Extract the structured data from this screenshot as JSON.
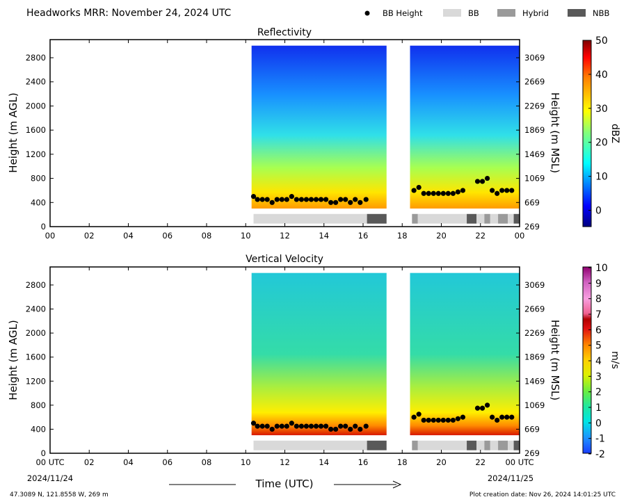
{
  "header": {
    "title": "Headworks MRR:  November 24, 2024 UTC",
    "legend": [
      {
        "label": "BB Height",
        "kind": "dot",
        "color": "#000000"
      },
      {
        "label": "BB",
        "kind": "box",
        "color": "#d9d9d9"
      },
      {
        "label": "Hybrid",
        "kind": "box",
        "color": "#9a9a9a"
      },
      {
        "label": "NBB",
        "kind": "box",
        "color": "#595959"
      }
    ]
  },
  "footer": {
    "location": "47.3089 N, 121.8558 W, 269 m",
    "created": "Plot creation date: Nov 26, 2024 14:01:25 UTC",
    "xlabel": "Time (UTC)",
    "start_date": "2024/11/24",
    "end_date": "2024/11/25"
  },
  "chart_data": [
    {
      "type": "heatmap",
      "title": "Reflectivity",
      "ylabel": "Height (m AGL)",
      "y2label": "Height (m MSL)",
      "colorbar_label": "dBZ",
      "colorbar_ticks": [
        "50",
        "40",
        "30",
        "20",
        "10",
        "0"
      ],
      "colorbar_range": [
        -5,
        50
      ],
      "x_ticks": [
        "00",
        "02",
        "04",
        "06",
        "08",
        "10",
        "12",
        "14",
        "16",
        "18",
        "20",
        "22",
        "00"
      ],
      "y_ticks": [
        "0",
        "400",
        "800",
        "1200",
        "1600",
        "2000",
        "2400",
        "2800"
      ],
      "y2_ticks": [
        "269",
        "669",
        "1069",
        "1469",
        "1869",
        "2269",
        "2669",
        "3069"
      ],
      "xlim": [
        0,
        24
      ],
      "ylim": [
        0,
        3100
      ],
      "data_segments": [
        {
          "start": 10.3,
          "end": 17.2,
          "low": 300,
          "high": 3000
        },
        {
          "start": 18.4,
          "end": 24.0,
          "low": 300,
          "high": 3000
        }
      ],
      "bb_height": [
        {
          "x": 10.4,
          "y": 500
        },
        {
          "x": 10.6,
          "y": 450
        },
        {
          "x": 10.85,
          "y": 450
        },
        {
          "x": 11.1,
          "y": 450
        },
        {
          "x": 11.35,
          "y": 400
        },
        {
          "x": 11.6,
          "y": 450
        },
        {
          "x": 11.85,
          "y": 450
        },
        {
          "x": 12.1,
          "y": 450
        },
        {
          "x": 12.35,
          "y": 500
        },
        {
          "x": 12.6,
          "y": 450
        },
        {
          "x": 12.85,
          "y": 450
        },
        {
          "x": 13.1,
          "y": 450
        },
        {
          "x": 13.35,
          "y": 450
        },
        {
          "x": 13.6,
          "y": 450
        },
        {
          "x": 13.85,
          "y": 450
        },
        {
          "x": 14.1,
          "y": 450
        },
        {
          "x": 14.35,
          "y": 400
        },
        {
          "x": 14.6,
          "y": 400
        },
        {
          "x": 14.85,
          "y": 450
        },
        {
          "x": 15.1,
          "y": 450
        },
        {
          "x": 15.35,
          "y": 400
        },
        {
          "x": 15.6,
          "y": 450
        },
        {
          "x": 15.85,
          "y": 400
        },
        {
          "x": 16.15,
          "y": 450
        },
        {
          "x": 18.6,
          "y": 600
        },
        {
          "x": 18.85,
          "y": 650
        },
        {
          "x": 19.1,
          "y": 550
        },
        {
          "x": 19.35,
          "y": 550
        },
        {
          "x": 19.6,
          "y": 550
        },
        {
          "x": 19.85,
          "y": 550
        },
        {
          "x": 20.1,
          "y": 550
        },
        {
          "x": 20.35,
          "y": 550
        },
        {
          "x": 20.6,
          "y": 550
        },
        {
          "x": 20.85,
          "y": 575
        },
        {
          "x": 21.1,
          "y": 600
        },
        {
          "x": 21.85,
          "y": 750
        },
        {
          "x": 22.1,
          "y": 750
        },
        {
          "x": 22.35,
          "y": 800
        },
        {
          "x": 22.6,
          "y": 600
        },
        {
          "x": 22.85,
          "y": 550
        },
        {
          "x": 23.1,
          "y": 600
        },
        {
          "x": 23.35,
          "y": 600
        },
        {
          "x": 23.6,
          "y": 600
        }
      ],
      "bb_types": [
        {
          "start": 10.4,
          "end": 16.2,
          "type": "BB"
        },
        {
          "start": 16.2,
          "end": 17.2,
          "type": "NBB"
        },
        {
          "start": 18.5,
          "end": 18.8,
          "type": "Hybrid"
        },
        {
          "start": 18.8,
          "end": 21.3,
          "type": "BB"
        },
        {
          "start": 21.3,
          "end": 21.8,
          "type": "NBB"
        },
        {
          "start": 21.8,
          "end": 22.2,
          "type": "BB"
        },
        {
          "start": 22.2,
          "end": 22.5,
          "type": "Hybrid"
        },
        {
          "start": 22.5,
          "end": 22.9,
          "type": "BB"
        },
        {
          "start": 22.9,
          "end": 23.4,
          "type": "Hybrid"
        },
        {
          "start": 23.4,
          "end": 23.7,
          "type": "BB"
        },
        {
          "start": 23.7,
          "end": 24.0,
          "type": "NBB"
        }
      ]
    },
    {
      "type": "heatmap",
      "title": "Vertical Velocity",
      "ylabel": "Height (m AGL)",
      "y2label": "Height (m MSL)",
      "colorbar_label": "m/s",
      "colorbar_ticks": [
        "10",
        "9",
        "8",
        "7",
        "6",
        "5",
        "4",
        "3",
        "2",
        "1",
        "0",
        "-1",
        "-2"
      ],
      "colorbar_range": [
        -2,
        10
      ],
      "x_ticks": [
        "00 UTC",
        "02",
        "04",
        "06",
        "08",
        "10",
        "12",
        "14",
        "16",
        "18",
        "20",
        "22",
        "00 UTC"
      ],
      "y_ticks": [
        "0",
        "400",
        "800",
        "1200",
        "1600",
        "2000",
        "2400",
        "2800"
      ],
      "y2_ticks": [
        "269",
        "669",
        "1069",
        "1469",
        "1869",
        "2269",
        "2669",
        "3069"
      ],
      "xlim": [
        0,
        24
      ],
      "ylim": [
        0,
        3100
      ],
      "data_segments": [
        {
          "start": 10.3,
          "end": 17.2,
          "low": 300,
          "high": 3000
        },
        {
          "start": 18.4,
          "end": 24.0,
          "low": 300,
          "high": 3000
        }
      ],
      "bb_height": [
        {
          "x": 10.4,
          "y": 500
        },
        {
          "x": 10.6,
          "y": 450
        },
        {
          "x": 10.85,
          "y": 450
        },
        {
          "x": 11.1,
          "y": 450
        },
        {
          "x": 11.35,
          "y": 400
        },
        {
          "x": 11.6,
          "y": 450
        },
        {
          "x": 11.85,
          "y": 450
        },
        {
          "x": 12.1,
          "y": 450
        },
        {
          "x": 12.35,
          "y": 500
        },
        {
          "x": 12.6,
          "y": 450
        },
        {
          "x": 12.85,
          "y": 450
        },
        {
          "x": 13.1,
          "y": 450
        },
        {
          "x": 13.35,
          "y": 450
        },
        {
          "x": 13.6,
          "y": 450
        },
        {
          "x": 13.85,
          "y": 450
        },
        {
          "x": 14.1,
          "y": 450
        },
        {
          "x": 14.35,
          "y": 400
        },
        {
          "x": 14.6,
          "y": 400
        },
        {
          "x": 14.85,
          "y": 450
        },
        {
          "x": 15.1,
          "y": 450
        },
        {
          "x": 15.35,
          "y": 400
        },
        {
          "x": 15.6,
          "y": 450
        },
        {
          "x": 15.85,
          "y": 400
        },
        {
          "x": 16.15,
          "y": 450
        },
        {
          "x": 18.6,
          "y": 600
        },
        {
          "x": 18.85,
          "y": 650
        },
        {
          "x": 19.1,
          "y": 550
        },
        {
          "x": 19.35,
          "y": 550
        },
        {
          "x": 19.6,
          "y": 550
        },
        {
          "x": 19.85,
          "y": 550
        },
        {
          "x": 20.1,
          "y": 550
        },
        {
          "x": 20.35,
          "y": 550
        },
        {
          "x": 20.6,
          "y": 550
        },
        {
          "x": 20.85,
          "y": 575
        },
        {
          "x": 21.1,
          "y": 600
        },
        {
          "x": 21.85,
          "y": 750
        },
        {
          "x": 22.1,
          "y": 750
        },
        {
          "x": 22.35,
          "y": 800
        },
        {
          "x": 22.6,
          "y": 600
        },
        {
          "x": 22.85,
          "y": 550
        },
        {
          "x": 23.1,
          "y": 600
        },
        {
          "x": 23.35,
          "y": 600
        },
        {
          "x": 23.6,
          "y": 600
        }
      ],
      "bb_types": [
        {
          "start": 10.4,
          "end": 16.2,
          "type": "BB"
        },
        {
          "start": 16.2,
          "end": 17.2,
          "type": "NBB"
        },
        {
          "start": 18.5,
          "end": 18.8,
          "type": "Hybrid"
        },
        {
          "start": 18.8,
          "end": 21.3,
          "type": "BB"
        },
        {
          "start": 21.3,
          "end": 21.8,
          "type": "NBB"
        },
        {
          "start": 21.8,
          "end": 22.2,
          "type": "BB"
        },
        {
          "start": 22.2,
          "end": 22.5,
          "type": "Hybrid"
        },
        {
          "start": 22.5,
          "end": 22.9,
          "type": "BB"
        },
        {
          "start": 22.9,
          "end": 23.4,
          "type": "Hybrid"
        },
        {
          "start": 23.4,
          "end": 23.7,
          "type": "BB"
        },
        {
          "start": 23.7,
          "end": 24.0,
          "type": "NBB"
        }
      ]
    }
  ]
}
